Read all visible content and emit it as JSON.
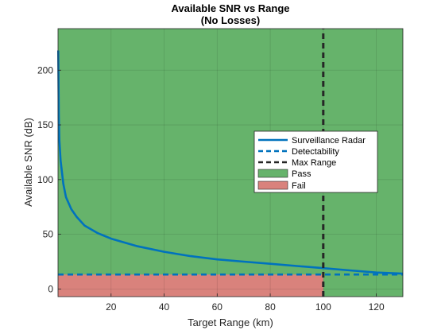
{
  "chart_data": {
    "type": "line",
    "title": [
      "Available SNR vs Range",
      "(No Losses)"
    ],
    "xlabel": "Target Range (km)",
    "ylabel": "Available SNR (dB)",
    "xlim": [
      0,
      130
    ],
    "ylim": [
      -7,
      238
    ],
    "xticks": [
      20,
      40,
      60,
      80,
      100,
      120
    ],
    "yticks": [
      0,
      50,
      100,
      150,
      200
    ],
    "grid": true,
    "legend_position": "center-right",
    "colors": {
      "pass": "#66b36b",
      "fail": "#d9827c",
      "surveillance": "#0072bd",
      "detectability": "#0072bd",
      "max_range": "#262626"
    },
    "regions": [
      {
        "name": "Pass",
        "color": "#66b36b",
        "x": [
          0,
          130
        ],
        "y_from_detectability_to": 238,
        "extra": {
          "x": [
            100,
            130
          ],
          "y": [
            -7,
            13.2
          ]
        }
      },
      {
        "name": "Fail",
        "color": "#d9827c",
        "x": [
          0,
          100
        ],
        "y": [
          -7,
          13.2
        ]
      }
    ],
    "series": [
      {
        "name": "Surveillance Radar",
        "style": "solid",
        "x": [
          0.1,
          0.3,
          0.5,
          1,
          2,
          3,
          5,
          7,
          10,
          15,
          20,
          30,
          40,
          50,
          60,
          70,
          80,
          90,
          100,
          110,
          120,
          130
        ],
        "y": [
          218,
          158,
          136,
          117,
          96,
          84,
          73,
          66,
          58,
          51,
          46,
          39,
          34,
          30,
          27,
          25,
          23,
          21,
          19,
          17,
          15,
          14
        ]
      },
      {
        "name": "Detectability",
        "style": "dashed",
        "x": [
          0,
          130
        ],
        "y": [
          13.2,
          13.2
        ]
      },
      {
        "name": "Max Range",
        "style": "dashed",
        "x": [
          100,
          100
        ],
        "y": [
          -7,
          238
        ]
      }
    ],
    "legend": [
      "Surveillance Radar",
      "Detectability",
      "Max Range",
      "Pass",
      "Fail"
    ]
  }
}
